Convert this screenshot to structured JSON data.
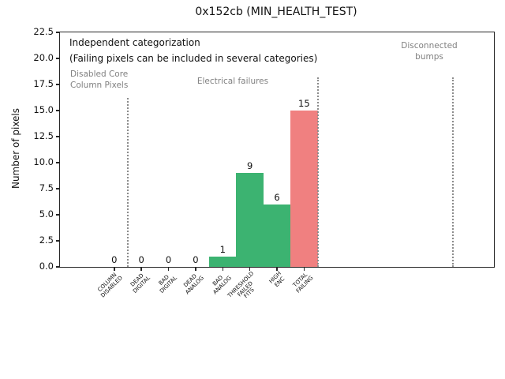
{
  "chart_data": {
    "type": "bar",
    "title": "0x152cb (MIN_HEALTH_TEST)",
    "ylabel": "Number of pixels",
    "xlabel": "",
    "ylim": [
      0,
      22.5
    ],
    "xlim": [
      -2,
      14
    ],
    "grid": false,
    "legend": null,
    "bar_width": 1.0,
    "yticks": [
      "0.0",
      "2.5",
      "5.0",
      "7.5",
      "10.0",
      "12.5",
      "15.0",
      "17.5",
      "20.0",
      "22.5"
    ],
    "categories": [
      "COLUMN DISABLED",
      "DEAD DIGITAL",
      "BAD DIGITAL",
      "DEAD ANALOG",
      "BAD ANALOG",
      "THRESHOLD FAILED FITS",
      "HIGH ENC",
      "TOTAL FAILING"
    ],
    "category_lines": [
      [
        "COLUMN",
        "DISABLED"
      ],
      [
        "DEAD",
        "DIGITAL"
      ],
      [
        "BAD",
        "DIGITAL"
      ],
      [
        "DEAD",
        "ANALOG"
      ],
      [
        "BAD",
        "ANALOG"
      ],
      [
        "THRESHOLD",
        "FAILED",
        "FITS"
      ],
      [
        "HIGH",
        "ENC"
      ],
      [
        "TOTAL",
        "FAILING"
      ]
    ],
    "values": [
      0,
      0,
      0,
      0,
      1,
      9,
      6,
      15
    ],
    "bar_value_labels": [
      "0",
      "0",
      "0",
      "0",
      "1",
      "9",
      "6",
      "15"
    ],
    "bar_colors": [
      "#3cb371",
      "#3cb371",
      "#3cb371",
      "#3cb371",
      "#3cb371",
      "#3cb371",
      "#3cb371",
      "#f08080"
    ],
    "colors": {
      "green_bar": "#3cb371",
      "red_bar": "#f08080",
      "gray_text": "#808080",
      "separator": "#8c8c8c",
      "axis": "#262626"
    },
    "separators": [
      {
        "x": 0.5,
        "y_top": 16.2
      },
      {
        "x": 7.5,
        "y_top": 18.2
      },
      {
        "x": 12.5,
        "y_top": 18.2
      }
    ],
    "annotations": {
      "note_line1": "Independent categorization",
      "note_line2": "(Failing pixels can be included in several categories)",
      "region_left": [
        "Disabled Core",
        "Column Pixels"
      ],
      "region_mid": "Electrical failures",
      "region_right": [
        "Disconnected",
        "bumps"
      ]
    }
  }
}
